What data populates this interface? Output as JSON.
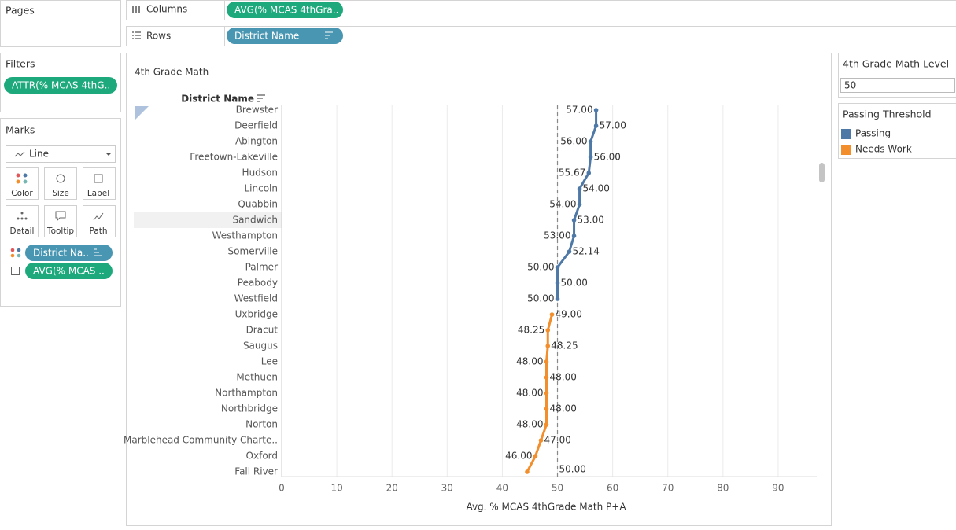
{
  "shelves": {
    "pages": "Pages",
    "columns": {
      "label": "Columns",
      "pill": "AVG(% MCAS 4thGra.."
    },
    "rows": {
      "label": "Rows",
      "pill": "District Name"
    }
  },
  "filters": {
    "title": "Filters",
    "pill": "ATTR(% MCAS 4thG.."
  },
  "marks": {
    "title": "Marks",
    "mark_type": "Line",
    "buttons": [
      "Color",
      "Size",
      "Label",
      "Detail",
      "Tooltip",
      "Path"
    ],
    "pills": [
      "District Na..",
      "AVG(% MCAS .."
    ]
  },
  "parameter": {
    "title": "4th Grade Math Level",
    "value": 50
  },
  "chart_data": {
    "type": "line",
    "title": "4th Grade Math",
    "row_header": "District Name",
    "categories": [
      "Brewster",
      "Deerfield",
      "Abington",
      "Freetown-Lakeville",
      "Hudson",
      "Lincoln",
      "Quabbin",
      "Sandwich",
      "Westhampton",
      "Somerville",
      "Palmer",
      "Peabody",
      "Westfield",
      "Uxbridge",
      "Dracut",
      "Saugus",
      "Lee",
      "Methuen",
      "Northampton",
      "Northbridge",
      "Norton",
      "Marblehead Community Charte..",
      "Oxford",
      "Fall River"
    ],
    "series": [
      {
        "name": "Passing",
        "color": "#4e79a7",
        "values": [
          57,
          57,
          56,
          56,
          55.67,
          54,
          54,
          53,
          53,
          52.14,
          50,
          50,
          50,
          null,
          null,
          null,
          null,
          null,
          null,
          null,
          null,
          null,
          null,
          null
        ],
        "value_labels": [
          "57.00",
          "57.00",
          "56.00",
          "56.00",
          "55.67",
          "54.00",
          "54.00",
          "53.00",
          "53.00",
          "52.14",
          "50.00",
          "50.00",
          "50.00",
          null,
          null,
          null,
          null,
          null,
          null,
          null,
          null,
          null,
          null,
          null
        ]
      },
      {
        "name": "Needs Work",
        "color": "#f28e2b",
        "values": [
          null,
          null,
          null,
          null,
          null,
          null,
          null,
          null,
          null,
          null,
          null,
          null,
          null,
          49,
          48.25,
          48.25,
          48,
          48,
          48,
          48,
          48,
          47,
          46,
          44.5
        ],
        "value_labels": [
          null,
          null,
          null,
          null,
          null,
          null,
          null,
          null,
          null,
          null,
          null,
          null,
          null,
          "49.00",
          "48.25",
          "48.25",
          "48.00",
          "48.00",
          "48.00",
          "48.00",
          "48.00",
          "47.00",
          "46.00",
          null
        ]
      }
    ],
    "xlabel": "Avg. % MCAS 4thGrade Math P+A",
    "xlim": [
      0,
      97
    ],
    "xticks": [
      0,
      10,
      20,
      30,
      40,
      50,
      60,
      70,
      80,
      90
    ],
    "grid": true,
    "reference_line": {
      "value": 50,
      "label": "50.00"
    },
    "legend_title": "Passing Threshold"
  }
}
